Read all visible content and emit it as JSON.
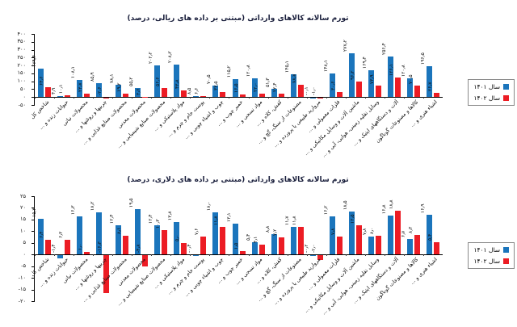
{
  "legend": {
    "year1_label": "سال ۱۴۰۱",
    "year2_label": "سال ۱۴۰۲",
    "year1_color": "#1b75bc",
    "year2_color": "#ec1c24"
  },
  "chart_data": [
    {
      "type": "bar",
      "title": "تورم سالانه کالاهای وارداتی (مبتنی بر داده های ریالی، درصد)",
      "ylabel": "درصد",
      "ylim": [
        -50,
        400
      ],
      "ytick_step": 50,
      "grid": false,
      "legend_position": "right",
      "categories": [
        "شاخص کل",
        "حیوانات زنده و ...",
        "محصولات نباتی",
        "چربیها و روغنها و ...",
        "محصولات صنایع غذایی و ...",
        "محصولات معدنی",
        "محصولات صنایع شیمیایی و ...",
        "مواد پلاستیکی و ...",
        "پوست خام و چرم و ...",
        "چوب و اشیاء چوبی و ...",
        "خمیر چوب و ...",
        "مواد نسجی و ...",
        "کفش، کلاه و ...",
        "مصنوعات از سنگ، گچ و ...",
        "مروارید طبیعی یا پرورده و ...",
        "فلزات معمولی و ...",
        "ماشین آلات و وسایل مکانیکی و ...",
        "وسایل نقلیه زمینی، هوایی، آبی و ...",
        "آلات و دستگاههای اپتیک و ...",
        "کالاها و مصنوعات گوناگون",
        "اشیاء هنری و ..."
      ],
      "series": [
        {
          "name": "سال ۱۴۰۱",
          "color": "#1b75bc",
          "values": [
            179.4,
            4.9,
            108.1,
            85.9,
            78.1,
            55.2,
            202.2,
            208.2,
            8.5,
            70.5,
            115.2,
            120.8,
            51.3,
            145.1,
            -0.1,
            148.1,
            277.2,
            169.4,
            256.4,
            120.8,
            196.5
          ]
        },
        {
          "name": "سال ۱۴۰۲",
          "color": "#ec1c24",
          "values": [
            64.6,
            10.1,
            23.7,
            -2.6,
            19.2,
            3.6,
            56.6,
            43.8,
            6.6,
            33.5,
            16.5,
            22.0,
            22.4,
            78.7,
            -1.0,
            30.6,
            96.2,
            73.9,
            126.1,
            70.5,
            26.7
          ]
        }
      ]
    },
    {
      "type": "bar",
      "title": "تورم سالانه کالاهای وارداتی (مبتنی بر داده های دلاری، درصد)",
      "ylabel": "درصد",
      "ylim": [
        -20,
        25
      ],
      "ytick_step": 5,
      "grid": false,
      "legend_position": "right",
      "categories": [
        "شاخص کل",
        "حیوانات زنده و ...",
        "محصولات نباتی",
        "چربیها و روغنها و ...",
        "محصولات صنایع غذایی و ...",
        "محصولات معدنی",
        "محصولات صنایع شیمیایی و ...",
        "مواد پلاستیکی و ...",
        "پوست خام و چرم و ...",
        "چوب و اشیاء چوبی و ...",
        "خمیر چوب و ...",
        "مواد نسجی و ...",
        "کفش، کلاه و ...",
        "مصنوعات از سنگ، گچ و ...",
        "مروارید طبیعی یا پرورده و ...",
        "فلزات معمولی و ...",
        "ماشین آلات و وسایل مکانیکی و ...",
        "وسایل نقلیه زمینی، هوایی، آبی و ...",
        "آلات و دستگاههای اپتیک و ...",
        "کالاها و مصنوعات گوناگون",
        "اشیاء هنری و ..."
      ],
      "series": [
        {
          "name": "سال ۱۴۰۱",
          "color": "#1b75bc",
          "values": [
            15.3,
            -1.4,
            16.3,
            18.2,
            12.4,
            19.5,
            12.4,
            13.8,
            -0.4,
            18.0,
            13.1,
            5.4,
            8.8,
            11.7,
            -0.2,
            16.2,
            18.5,
            7.8,
            16.8,
            6.7,
            16.9
          ]
        },
        {
          "name": "سال ۱۴۰۲",
          "color": "#ec1c24",
          "values": [
            6.4,
            6.3,
            1.0,
            -16.3,
            8.1,
            -4.8,
            10.3,
            5.0,
            7.6,
            11.8,
            1.5,
            4.1,
            7.2,
            11.8,
            -2.0,
            7.8,
            12.5,
            8.0,
            18.8,
            8.3,
            5.4
          ]
        }
      ]
    }
  ]
}
